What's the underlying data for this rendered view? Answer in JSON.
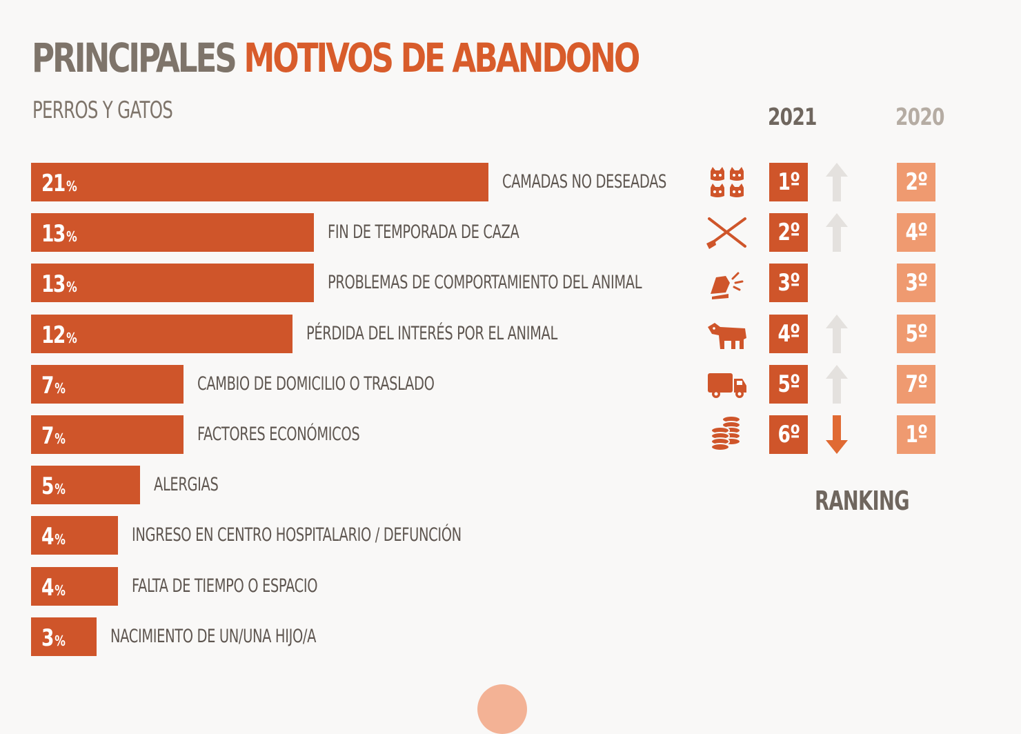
{
  "title": {
    "part1": "PRINCIPALES",
    "part2": "MOTIVOS DE ABANDONO"
  },
  "subtitle": "PERROS Y GATOS",
  "years": {
    "current": "2021",
    "previous": "2020"
  },
  "ranking_label": "RANKING",
  "colors": {
    "bar": "#cf552a",
    "rank_2021": "#cf552a",
    "rank_2020": "#ef9a70",
    "arrow_up": "#e4e1de",
    "arrow_down": "#e06a33",
    "text": "#5e5650"
  },
  "chart_data": {
    "type": "bar",
    "title": "PRINCIPALES MOTIVOS DE ABANDONO",
    "subtitle": "PERROS Y GATOS",
    "orientation": "horizontal",
    "unit": "%",
    "xlim": [
      0,
      21
    ],
    "categories": [
      "CAMADAS NO DESEADAS",
      "FIN DE TEMPORADA DE CAZA",
      "PROBLEMAS DE COMPORTAMIENTO DEL ANIMAL",
      "PÉRDIDA DEL INTERÉS POR EL ANIMAL",
      "CAMBIO DE DOMICILIO O TRASLADO",
      "FACTORES ECONÓMICOS",
      "ALERGIAS",
      "INGRESO EN CENTRO HOSPITALARIO / DEFUNCIÓN",
      "FALTA DE TIEMPO O ESPACIO",
      "NACIMIENTO DE UN/UNA HIJO/A"
    ],
    "values": [
      21,
      13,
      13,
      12,
      7,
      7,
      5,
      4,
      4,
      3
    ],
    "ranking": [
      {
        "rank_2021": "1º",
        "rank_2020": "2º",
        "trend": "up",
        "icon": "kittens-icon"
      },
      {
        "rank_2021": "2º",
        "rank_2020": "4º",
        "trend": "up",
        "icon": "shotgun-icon"
      },
      {
        "rank_2021": "3º",
        "rank_2020": "3º",
        "trend": "none",
        "icon": "bite-icon"
      },
      {
        "rank_2021": "4º",
        "rank_2020": "5º",
        "trend": "up",
        "icon": "dog-icon"
      },
      {
        "rank_2021": "5º",
        "rank_2020": "7º",
        "trend": "up",
        "icon": "truck-icon"
      },
      {
        "rank_2021": "6º",
        "rank_2020": "1º",
        "trend": "down",
        "icon": "coins-icon"
      }
    ]
  }
}
